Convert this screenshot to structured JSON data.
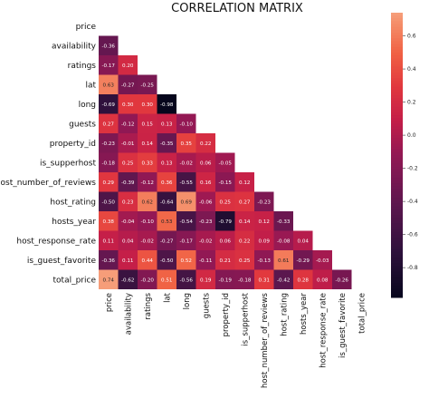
{
  "chart_data": {
    "type": "heatmap",
    "title": "CORRELATION MATRIX",
    "variables": [
      "price",
      "availability",
      "ratings",
      "lat",
      "long",
      "guests",
      "property_id",
      "is_supperhost",
      "host_number_of_reviews",
      "host_rating",
      "hosts_year",
      "host_response_rate",
      "is_guest_favorite",
      "total_price"
    ],
    "lower_triangle_values": [
      [],
      [
        "-0.36"
      ],
      [
        "-0.17",
        "0.20"
      ],
      [
        "0.63",
        "-0.27",
        "-0.25"
      ],
      [
        "-0.69",
        "0.30",
        "0.30",
        "-0.98"
      ],
      [
        "0.27",
        "-0.12",
        "0.15",
        "0.13",
        "-0.10"
      ],
      [
        "-0.23",
        "-0.01",
        "0.14",
        "-0.35",
        "0.35",
        "0.22"
      ],
      [
        "-0.18",
        "0.25",
        "0.33",
        "0.13",
        "-0.02",
        "0.06",
        "-0.05"
      ],
      [
        "0.29",
        "-0.39",
        "-0.12",
        "0.36",
        "-0.55",
        "0.16",
        "-0.15",
        "0.12"
      ],
      [
        "-0.50",
        "0.23",
        "0.62",
        "-0.64",
        "0.69",
        "-0.06",
        "0.25",
        "0.27",
        "-0.23"
      ],
      [
        "0.38",
        "-0.04",
        "-0.10",
        "0.53",
        "-0.54",
        "-0.23",
        "-0.79",
        "0.14",
        "0.12",
        "-0.33"
      ],
      [
        "0.11",
        "0.04",
        "-0.02",
        "-0.27",
        "-0.17",
        "-0.02",
        "0.06",
        "0.22",
        "0.09",
        "-0.08",
        "0.04"
      ],
      [
        "-0.36",
        "0.11",
        "0.44",
        "-0.50",
        "0.52",
        "-0.11",
        "0.21",
        "0.25",
        "-0.13",
        "0.61",
        "-0.29",
        "-0.03"
      ],
      [
        "0.74",
        "-0.62",
        "-0.20",
        "0.51",
        "-0.56",
        "0.19",
        "-0.19",
        "-0.18",
        "0.31",
        "-0.42",
        "0.28",
        "0.08",
        "-0.26"
      ]
    ],
    "colorbar": {
      "min": -1.0,
      "max": 1.0,
      "ticks": [
        "0.6",
        "0.4",
        "0.2",
        "0.0",
        "-0.2",
        "-0.4",
        "-0.6",
        "-0.8"
      ],
      "colormap": "rocket"
    },
    "grid": false,
    "legend": "colorbar right"
  }
}
